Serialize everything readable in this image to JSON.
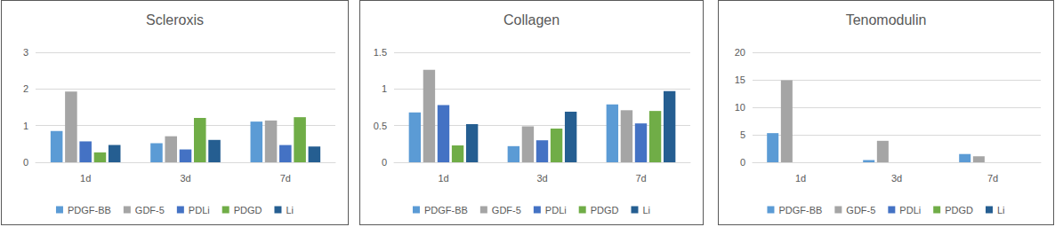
{
  "chart_data": [
    {
      "type": "bar",
      "title": "Scleroxis",
      "categories": [
        "1d",
        "3d",
        "7d"
      ],
      "series": [
        {
          "name": "PDGF-BB",
          "color": "#5b9bd5",
          "values": [
            0.85,
            0.52,
            1.11
          ]
        },
        {
          "name": "GDF-5",
          "color": "#a5a5a5",
          "values": [
            1.93,
            0.71,
            1.14
          ]
        },
        {
          "name": "PDLi",
          "color": "#4472c4",
          "values": [
            0.57,
            0.35,
            0.47
          ]
        },
        {
          "name": "PDGD",
          "color": "#70ad47",
          "values": [
            0.27,
            1.21,
            1.23
          ]
        },
        {
          "name": "Li",
          "color": "#255e91",
          "values": [
            0.47,
            0.61,
            0.43
          ]
        }
      ],
      "ylim": [
        0,
        3
      ],
      "yticks": [
        0,
        1,
        2,
        3
      ],
      "grid": true,
      "legend": "bottom"
    },
    {
      "type": "bar",
      "title": "Collagen",
      "categories": [
        "1d",
        "3d",
        "7d"
      ],
      "series": [
        {
          "name": "PDGF-BB",
          "color": "#5b9bd5",
          "values": [
            0.68,
            0.22,
            0.79
          ]
        },
        {
          "name": "GDF-5",
          "color": "#a5a5a5",
          "values": [
            1.26,
            0.49,
            0.71
          ]
        },
        {
          "name": "PDLi",
          "color": "#4472c4",
          "values": [
            0.78,
            0.3,
            0.53
          ]
        },
        {
          "name": "PDGD",
          "color": "#70ad47",
          "values": [
            0.23,
            0.46,
            0.7
          ]
        },
        {
          "name": "Li",
          "color": "#255e91",
          "values": [
            0.52,
            0.69,
            0.97
          ]
        }
      ],
      "ylim": [
        0,
        1.5
      ],
      "yticks": [
        0,
        0.5,
        1,
        1.5
      ],
      "grid": true,
      "legend": "bottom"
    },
    {
      "type": "bar",
      "title": "Tenomodulin",
      "categories": [
        "1d",
        "3d",
        "7d"
      ],
      "series": [
        {
          "name": "PDGF-BB",
          "color": "#5b9bd5",
          "values": [
            5.3,
            0.4,
            1.5
          ]
        },
        {
          "name": "GDF-5",
          "color": "#a5a5a5",
          "values": [
            14.9,
            3.9,
            1.1
          ]
        },
        {
          "name": "PDLi",
          "color": "#4472c4",
          "values": [
            0,
            0,
            0
          ]
        },
        {
          "name": "PDGD",
          "color": "#70ad47",
          "values": [
            0,
            0,
            0
          ]
        },
        {
          "name": "Li",
          "color": "#255e91",
          "values": [
            0,
            0,
            0
          ]
        }
      ],
      "ylim": [
        0,
        20
      ],
      "yticks": [
        0,
        5,
        10,
        15,
        20
      ],
      "grid": true,
      "legend": "bottom"
    }
  ]
}
